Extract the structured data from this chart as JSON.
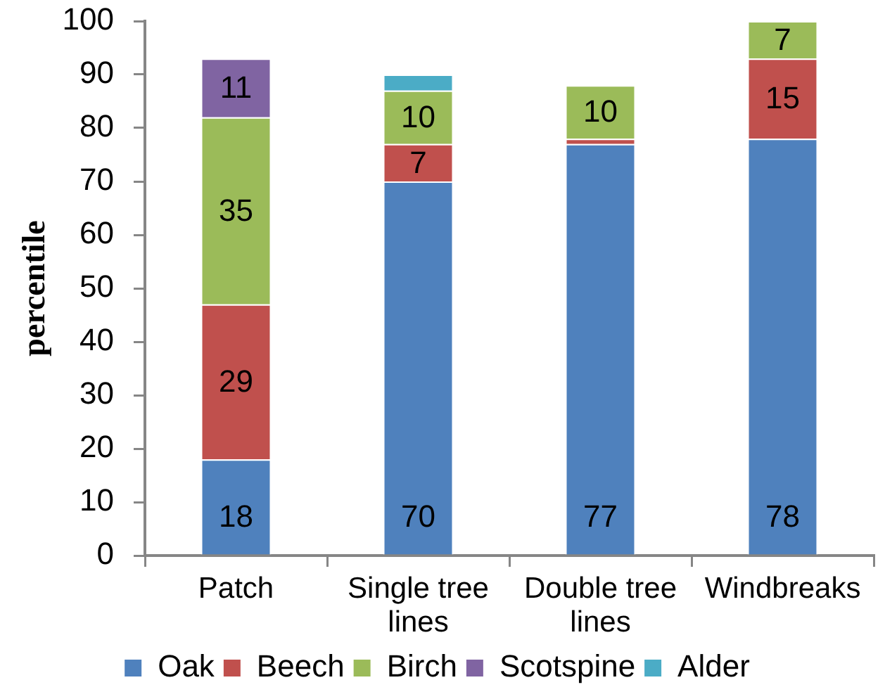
{
  "chart_data": {
    "type": "bar",
    "stacked": true,
    "ylabel": "percentile",
    "categories": [
      "Patch",
      "Single tree lines",
      "Double tree lines",
      "Windbreaks"
    ],
    "series": [
      {
        "name": "Oak",
        "color": "#4f81bd",
        "values": [
          18,
          70,
          77,
          78
        ],
        "value_labels": [
          "18",
          "70",
          "77",
          "78"
        ]
      },
      {
        "name": "Beech",
        "color": "#c0504d",
        "values": [
          29,
          7,
          1,
          15
        ],
        "value_labels": [
          "29",
          "7",
          null,
          "15"
        ]
      },
      {
        "name": "Birch",
        "color": "#9bbb59",
        "values": [
          35,
          10,
          10,
          7
        ],
        "value_labels": [
          "35",
          "10",
          "10",
          "7"
        ]
      },
      {
        "name": "Scotspine",
        "color": "#8064a2",
        "values": [
          11,
          null,
          null,
          null
        ],
        "value_labels": [
          "11",
          null,
          null,
          null
        ]
      },
      {
        "name": "Alder",
        "color": "#4bacc6",
        "values": [
          null,
          3,
          null,
          null
        ]
      }
    ],
    "ylim": [
      0,
      100
    ],
    "yticks": [
      0,
      10,
      20,
      30,
      40,
      50,
      60,
      70,
      80,
      90,
      100
    ],
    "grid": false,
    "legend": "bottom"
  }
}
